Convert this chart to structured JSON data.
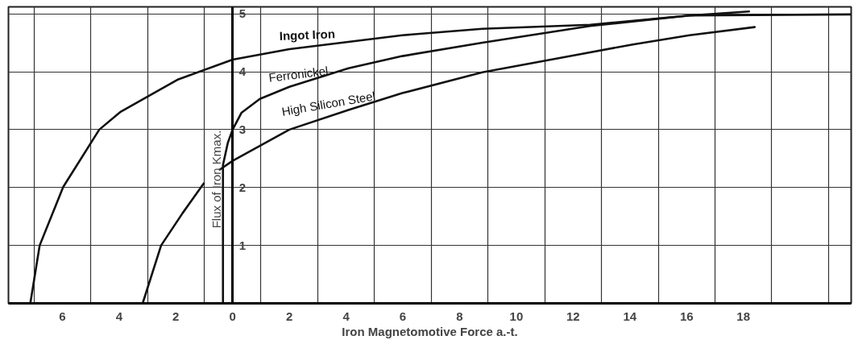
{
  "chart_data": {
    "type": "line",
    "xlabel": "Iron Magnetomotive Force a.-t.",
    "ylabel": "Flux of Iron Kmax.",
    "xlim": [
      -7.9,
      21.8
    ],
    "ylim": [
      0,
      5.12
    ],
    "xticks": [
      {
        "value": -7,
        "label": null
      },
      {
        "value": -6,
        "label": "6"
      },
      {
        "value": -5,
        "label": null
      },
      {
        "value": -4,
        "label": "4"
      },
      {
        "value": -3,
        "label": null
      },
      {
        "value": -2,
        "label": "2"
      },
      {
        "value": -1,
        "label": null
      },
      0,
      {
        "value": 1,
        "label": null
      },
      2,
      {
        "value": 3,
        "label": null
      },
      4,
      {
        "value": 5,
        "label": null
      },
      6,
      {
        "value": 7,
        "label": null
      },
      8,
      {
        "value": 9,
        "label": null
      },
      10,
      {
        "value": 11,
        "label": null
      },
      12,
      {
        "value": 13,
        "label": null
      },
      14,
      {
        "value": 15,
        "label": null
      },
      16,
      {
        "value": 17,
        "label": null
      },
      18,
      {
        "value": 19,
        "label": null
      },
      {
        "value": 21,
        "label": null
      }
    ],
    "yticks": [
      1,
      2,
      3,
      4,
      5
    ],
    "grid": true,
    "marker": "none",
    "line_style": "solid",
    "series": [
      {
        "name": "Ingot Iron",
        "color": "#111111",
        "x": [
          -7.13,
          -6.8,
          -5.97,
          -4.7,
          -3.94,
          -1.95,
          0,
          2,
          5.98,
          8.8,
          12.6,
          16.1,
          21.8
        ],
        "values": [
          0,
          1,
          2.01,
          3,
          3.31,
          3.86,
          4.21,
          4.39,
          4.63,
          4.74,
          4.81,
          4.97,
          4.99
        ]
      },
      {
        "name": "Ferronickel",
        "color": "#111111",
        "x": [
          -0.34,
          -0.34,
          -0.17,
          0,
          0.31,
          0.96,
          2,
          4.08,
          5.98,
          8.8,
          12.6,
          16.1,
          18.2
        ],
        "values": [
          0,
          2.39,
          2.77,
          3,
          3.29,
          3.53,
          3.74,
          4.06,
          4.27,
          4.5,
          4.79,
          4.97,
          5.04
        ]
      },
      {
        "name": "High Silicon Steel",
        "color": "#111111",
        "x": [
          -3.17,
          -2.52,
          -1.76,
          -1.02,
          -0.7,
          -0.45,
          0,
          2,
          4.08,
          5.98,
          8.8,
          12.1,
          14.1,
          16.1,
          18.4
        ],
        "values": [
          0,
          1,
          1.56,
          2.07,
          null,
          2.31,
          2.46,
          3,
          3.34,
          3.63,
          3.99,
          4.29,
          4.47,
          4.63,
          4.77
        ]
      }
    ]
  }
}
